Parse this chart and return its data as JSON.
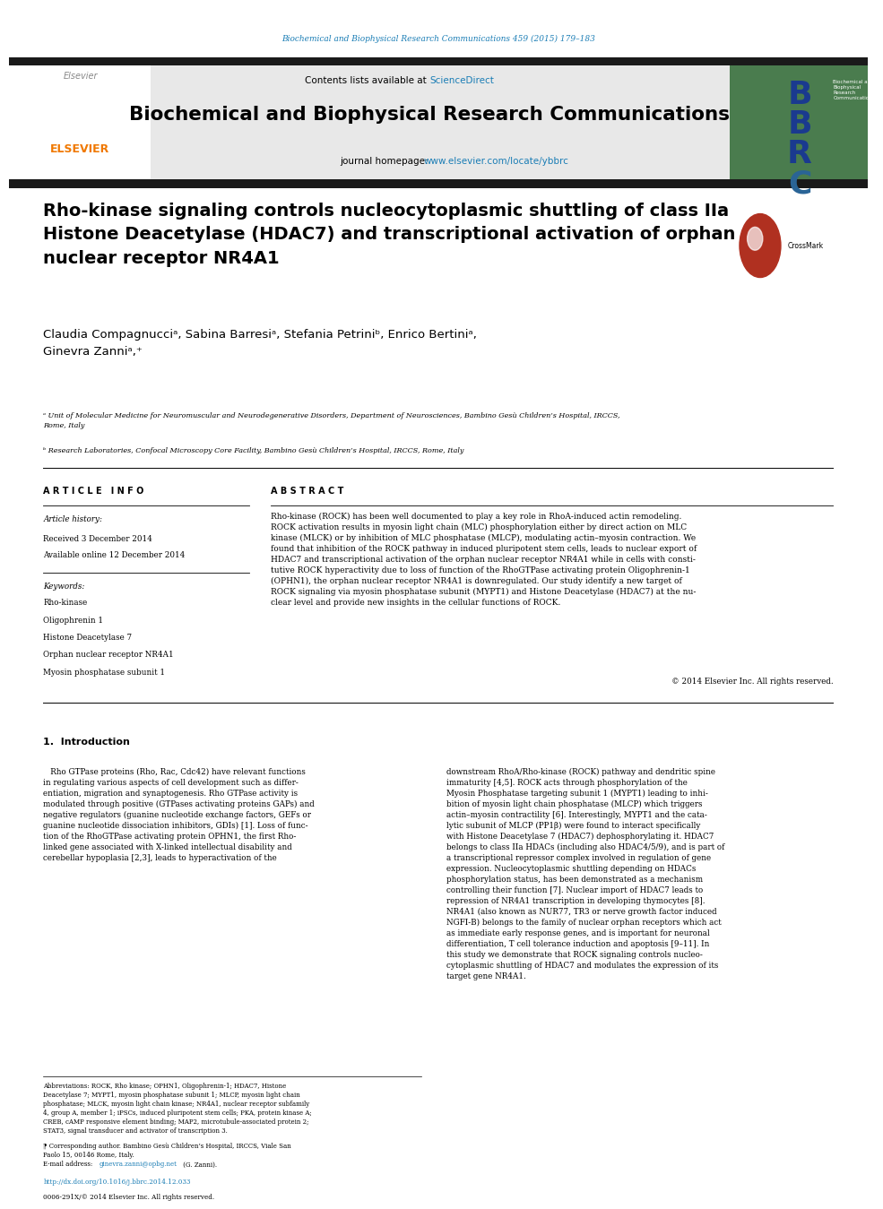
{
  "journal_url_text": "Biochemical and Biophysical Research Communications 459 (2015) 179–183",
  "journal_url_color": "#1a7db5",
  "contents_text": "Contents lists available at ",
  "sciencedirect_text": "ScienceDirect",
  "sciencedirect_color": "#1a7db5",
  "journal_name": "Biochemical and Biophysical Research Communications",
  "journal_homepage_text": "journal homepage: ",
  "journal_homepage_url": "www.elsevier.com/locate/ybbrc",
  "journal_homepage_url_color": "#1a7db5",
  "title": "Rho-kinase signaling controls nucleocytoplasmic shuttling of class IIa\nHistone Deacetylase (HDAC7) and transcriptional activation of orphan\nnuclear receptor NR4A1",
  "authors": "Claudia Compagnucciᵃ, Sabina Barresiᵃ, Stefania Petriniᵇ, Enrico Bertiniᵃ,\nGinevra Zanniᵃ,⁺",
  "affil_a": "ᵃ Unit of Molecular Medicine for Neuromuscular and Neurodegenerative Disorders, Department of Neurosciences, Bambino Gesù Children’s Hospital, IRCCS,\nRome, Italy",
  "affil_b": "ᵇ Research Laboratories, Confocal Microscopy Core Facility, Bambino Gesù Children’s Hospital, IRCCS, Rome, Italy",
  "article_info_header": "A R T I C L E   I N F O",
  "article_history_label": "Article history:",
  "received": "Received 3 December 2014",
  "available": "Available online 12 December 2014",
  "keywords_label": "Keywords:",
  "keywords": [
    "Rho-kinase",
    "Oligophrenin 1",
    "Histone Deacetylase 7",
    "Orphan nuclear receptor NR4A1",
    "Myosin phosphatase subunit 1"
  ],
  "abstract_header": "A B S T R A C T",
  "abstract_text": "Rho-kinase (ROCK) has been well documented to play a key role in RhoA-induced actin remodeling.\nROCK activation results in myosin light chain (MLC) phosphorylation either by direct action on MLC\nkinase (MLCK) or by inhibition of MLC phosphatase (MLCP), modulating actin–myosin contraction. We\nfound that inhibition of the ROCK pathway in induced pluripotent stem cells, leads to nuclear export of\nHDAC7 and transcriptional activation of the orphan nuclear receptor NR4A1 while in cells with consti-\ntutive ROCK hyperactivity due to loss of function of the RhoGTPase activating protein Oligophrenin-1\n(OPHN1), the orphan nuclear receptor NR4A1 is downregulated. Our study identify a new target of\nROCK signaling via myosin phosphatase subunit (MYPT1) and Histone Deacetylase (HDAC7) at the nu-\nclear level and provide new insights in the cellular functions of ROCK.",
  "copyright_text": "© 2014 Elsevier Inc. All rights reserved.",
  "intro_header": "1.  Introduction",
  "intro_col1": "   Rho GTPase proteins (Rho, Rac, Cdc42) have relevant functions\nin regulating various aspects of cell development such as differ-\nentiation, migration and synaptogenesis. Rho GTPase activity is\nmodulated through positive (GTPases activating proteins GAPs) and\nnegative regulators (guanine nucleotide exchange factors, GEFs or\nguanine nucleotide dissociation inhibitors, GDIs) [1]. Loss of func-\ntion of the RhoGTPase activating protein OPHN1, the first Rho-\nlinked gene associated with X-linked intellectual disability and\ncerebellar hypoplasia [2,3], leads to hyperactivation of the",
  "intro_col2": "downstream RhoA/Rho-kinase (ROCK) pathway and dendritic spine\nimmaturity [4,5]. ROCK acts through phosphorylation of the\nMyosin Phosphatase targeting subunit 1 (MYPT1) leading to inhi-\nbition of myosin light chain phosphatase (MLCP) which triggers\nactin–myosin contractility [6]. Interestingly, MYPT1 and the cata-\nlytic subunit of MLCP (PP1β) were found to interact specifically\nwith Histone Deacetylase 7 (HDAC7) dephosphorylating it. HDAC7\nbelongs to class IIa HDACs (including also HDAC4/5/9), and is part of\na transcriptional repressor complex involved in regulation of gene\nexpression. Nucleocytoplasmic shuttling depending on HDACs\nphosphorylation status, has been demonstrated as a mechanism\ncontrolling their function [7]. Nuclear import of HDAC7 leads to\nrepression of NR4A1 transcription in developing thymocytes [8].\nNR4A1 (also known as NUR77, TR3 or nerve growth factor induced\nNGFI-B) belongs to the family of nuclear orphan receptors which act\nas immediate early response genes, and is important for neuronal\ndifferentiation, T cell tolerance induction and apoptosis [9–11]. In\nthis study we demonstrate that ROCK signaling controls nucleo-\ncytoplasmic shuttling of HDAC7 and modulates the expression of its\ntarget gene NR4A1.",
  "footnote_abbrev": "Abbreviations: ROCK, Rho kinase; OPHN1, Oligophrenin-1; HDAC7, Histone\nDeacetylase 7; MYPT1, myosin phosphatase subunit 1; MLCP, myosin light chain\nphosphatase; MLCK, myosin light chain kinase; NR4A1, nuclear receptor subfamily\n4, group A, member 1; iPSCs, induced pluripotent stem cells; PKA, protein kinase A;\nCREB, cAMP responsive element binding; MAP2, microtubule-associated protein 2;\nSTAT3, signal transducer and activator of transcription 3.",
  "footnote_corresponding": "⁋ Corresponding author. Bambino Gesù Children’s Hospital, IRCCS, Viale San\nPaolo 15, 00146 Rome, Italy.",
  "footnote_email_label": "E-mail address: ",
  "footnote_email": "ginevra.zanni@opbg.net",
  "footnote_email_color": "#1a7db5",
  "footnote_email_rest": " (G. Zanni).",
  "doi_text": "http://dx.doi.org/10.1016/j.bbrc.2014.12.033",
  "doi_color": "#1a7db5",
  "issn_text": "0006-291X/© 2014 Elsevier Inc. All rights reserved.",
  "bg_header_color": "#e8e8e8",
  "bg_white": "#ffffff",
  "text_black": "#000000",
  "elsevier_orange": "#f07800",
  "separator_color": "#000000",
  "top_bar_color": "#1a1a1a",
  "journal_bg_green": "#4a7c4e",
  "figure_width": 9.92,
  "figure_height": 13.23
}
